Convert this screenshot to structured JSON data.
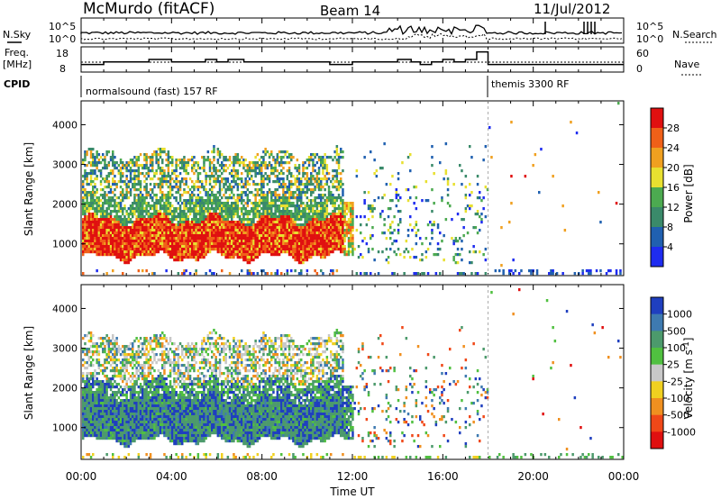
{
  "header": {
    "station": "McMurdo (fitACF)",
    "beam": "Beam 14",
    "date": "11/Jul/2012"
  },
  "summary_panel": {
    "nsky_label": "N.Sky",
    "nsearch_label": "N.Search",
    "freq_label": "Freq.",
    "freq_unit": "[MHz]",
    "nave_label": "Nave",
    "cpid_label": "CPID",
    "noise_ticks": [
      "10^5",
      "10^0"
    ],
    "noise_right_ticks": [
      "10^5",
      "10^0"
    ],
    "freq_ticks": [
      "18",
      "8"
    ],
    "nave_ticks": [
      "60",
      "0"
    ],
    "cpid_segments": [
      {
        "label": "normalsound (fast) 157 RF",
        "start_hour": 0.0,
        "end_hour": 18.0
      },
      {
        "label": "themis 3300 RF",
        "start_hour": 18.0,
        "end_hour": 24.0
      }
    ],
    "freq_steps": [
      {
        "hour": 0.0,
        "mhz": 11
      },
      {
        "hour": 1.0,
        "mhz": 12
      },
      {
        "hour": 3.0,
        "mhz": 13
      },
      {
        "hour": 4.0,
        "mhz": 12
      },
      {
        "hour": 5.5,
        "mhz": 13
      },
      {
        "hour": 6.0,
        "mhz": 12
      },
      {
        "hour": 6.5,
        "mhz": 13
      },
      {
        "hour": 7.2,
        "mhz": 12
      },
      {
        "hour": 7.8,
        "mhz": 12
      },
      {
        "hour": 8.0,
        "mhz": 12
      },
      {
        "hour": 9.0,
        "mhz": 12
      },
      {
        "hour": 10.5,
        "mhz": 12
      },
      {
        "hour": 11.0,
        "mhz": 11
      },
      {
        "hour": 12.0,
        "mhz": 12
      },
      {
        "hour": 13.0,
        "mhz": 12
      },
      {
        "hour": 14.0,
        "mhz": 13
      },
      {
        "hour": 14.6,
        "mhz": 12
      },
      {
        "hour": 15.0,
        "mhz": 11
      },
      {
        "hour": 15.5,
        "mhz": 12
      },
      {
        "hour": 16.0,
        "mhz": 13
      },
      {
        "hour": 16.5,
        "mhz": 12
      },
      {
        "hour": 17.0,
        "mhz": 13
      },
      {
        "hour": 17.5,
        "mhz": 16
      },
      {
        "hour": 18.0,
        "mhz": 11
      },
      {
        "hour": 24.0,
        "mhz": 11
      }
    ]
  },
  "chart_data": [
    {
      "type": "heatmap",
      "quantity": "Power",
      "ylabel": "Slant Range [km]",
      "yticks": [
        "1000",
        "2000",
        "3000",
        "4000"
      ],
      "ylim": [
        200,
        4600
      ],
      "colorbar_label": "Power [dB]",
      "colorbar_ticks": [
        "4",
        "8",
        "12",
        "16",
        "20",
        "24",
        "28"
      ],
      "colorbar_colors": [
        "#1e2cf0",
        "#2060b0",
        "#3a8a6a",
        "#4caa50",
        "#e8e030",
        "#f0a020",
        "#f06018",
        "#e01010"
      ],
      "dominant_features": [
        {
          "hours": [
            0.0,
            11.5
          ],
          "range_km": [
            700,
            1700
          ],
          "power_db": 28
        },
        {
          "hours": [
            0.0,
            11.5
          ],
          "range_km": [
            1700,
            3200
          ],
          "power_db": 12
        },
        {
          "hours": [
            11.5,
            18.0
          ],
          "range_km": [
            500,
            3500
          ],
          "power_db": 8
        }
      ]
    },
    {
      "type": "heatmap",
      "quantity": "Velocity",
      "ylabel": "Slant Range [km]",
      "yticks": [
        "1000",
        "2000",
        "3000",
        "4000"
      ],
      "ylim": [
        200,
        4600
      ],
      "colorbar_label": "Velocity [m s^-1]",
      "colorbar_ticks": [
        "1000",
        "500",
        "100",
        "25",
        "-25",
        "-100",
        "-500",
        "-1000"
      ],
      "colorbar_colors": [
        "#1f3fbf",
        "#3e7ab0",
        "#4c9a6c",
        "#50c040",
        "#c8c8c8",
        "#f0d020",
        "#f09020",
        "#f04818",
        "#e01010"
      ],
      "dominant_features": [
        {
          "hours": [
            0.0,
            11.5
          ],
          "range_km": [
            700,
            1800
          ],
          "velocity_ms": 500
        },
        {
          "hours": [
            0.0,
            11.5
          ],
          "range_km": [
            1800,
            3300
          ],
          "velocity_ms": 100
        },
        {
          "hours": [
            11.5,
            18.0
          ],
          "range_km": [
            500,
            3500
          ],
          "velocity_ms": 100
        }
      ]
    }
  ],
  "time_axis": {
    "label": "Time UT",
    "ticks": [
      "00:00",
      "04:00",
      "08:00",
      "12:00",
      "16:00",
      "20:00",
      "00:00"
    ]
  }
}
